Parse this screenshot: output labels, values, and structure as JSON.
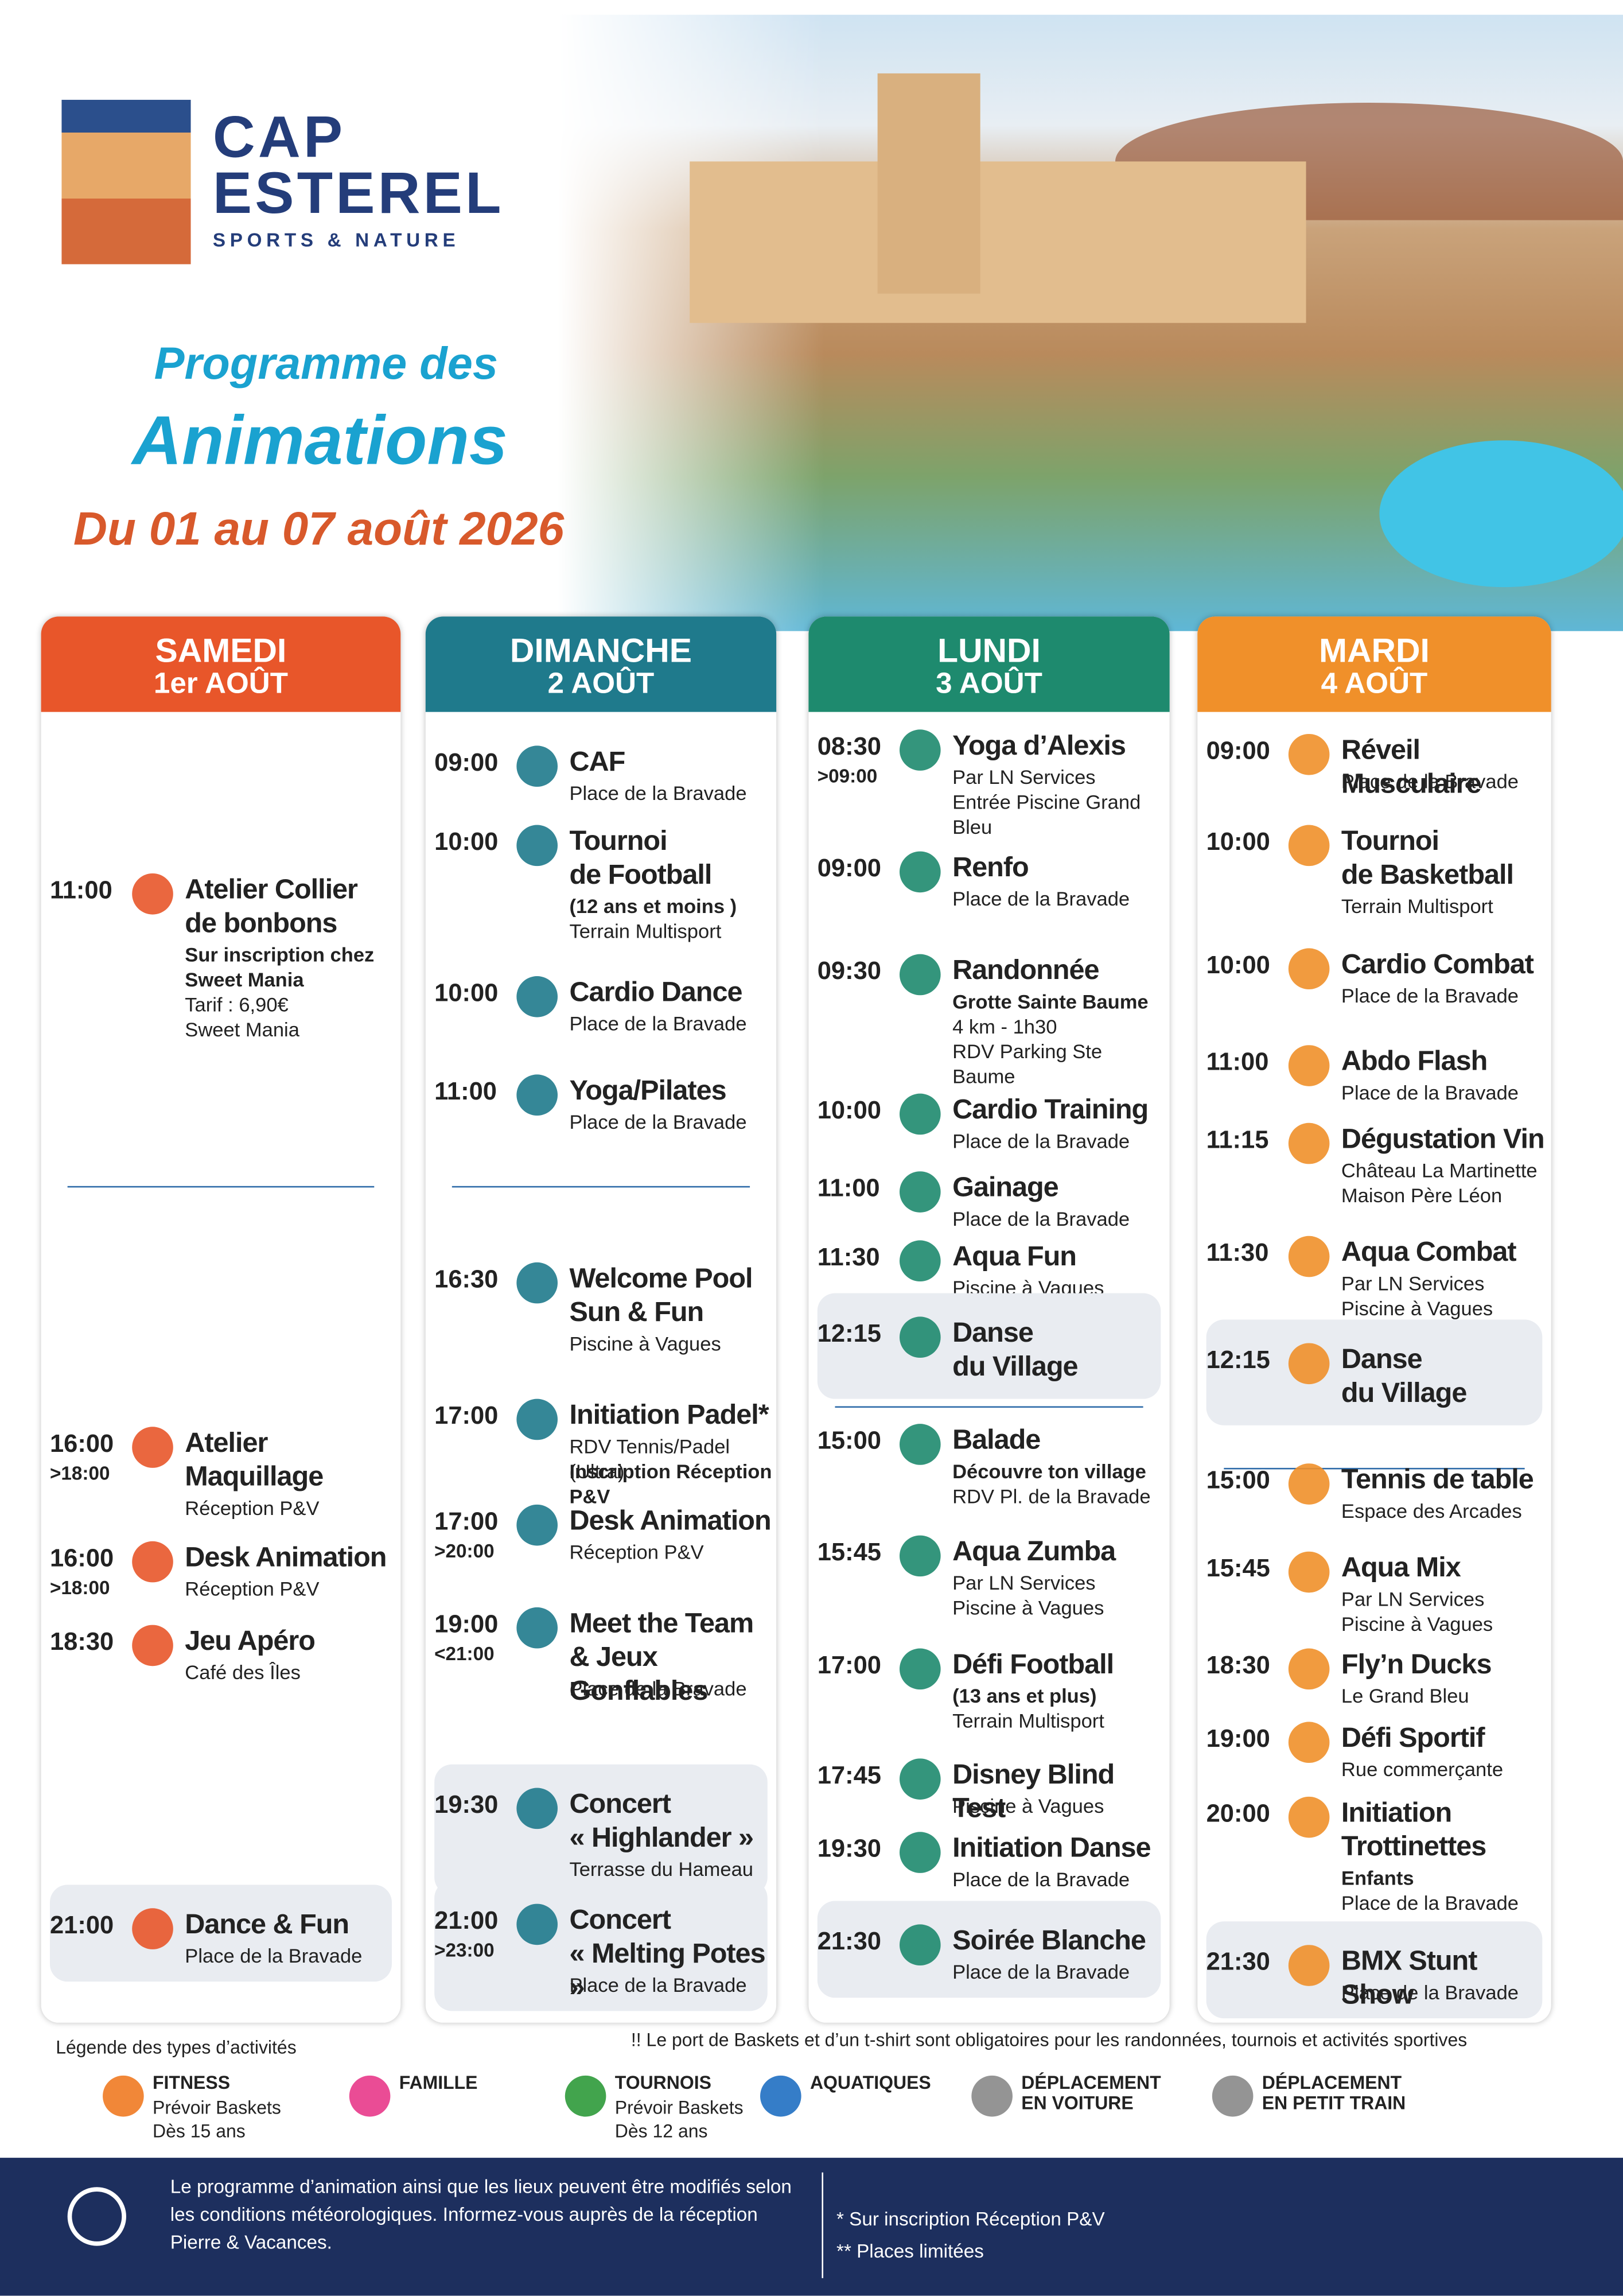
{
  "header": {
    "brand": "CAP",
    "brand2": "ESTEREL",
    "tagline": "SPORTS & NATURE",
    "title1": "Programme des",
    "title2": "Animations",
    "period": "Du 01 au 07 août 2026"
  },
  "days": [
    {
      "name": "SAMEDI",
      "date": "1er AOÛT",
      "color": "#e8562a",
      "events": [
        {
          "time": "11:00",
          "title": "Atelier Collier\nde bonbons",
          "lines": [
            {
              "text": "Sur inscription chez\nSweet Mania",
              "bold": true
            },
            {
              "text": "Tarif : 6,90€"
            },
            {
              "text": "Sweet Mania"
            }
          ]
        },
        {
          "time": "16:00",
          "end": ">18:00",
          "title": "Atelier\nMaquillage",
          "lines": [
            {
              "text": "Réception P&V"
            }
          ]
        },
        {
          "time": "16:00",
          "end": ">18:00",
          "title": "Desk Animation",
          "lines": [
            {
              "text": "Réception P&V"
            }
          ]
        },
        {
          "time": "18:30",
          "title": "Jeu Apéro",
          "lines": [
            {
              "text": "Café des Îles"
            }
          ]
        },
        {
          "time": "21:00",
          "title": "Dance & Fun",
          "lines": [
            {
              "text": "Place de la Bravade"
            }
          ],
          "highlight": true
        }
      ]
    },
    {
      "name": "DIMANCHE",
      "date": "2 AOÛT",
      "color": "#1f7a8c",
      "events": [
        {
          "time": "09:00",
          "title": "CAF",
          "lines": [
            {
              "text": "Place de la Bravade"
            }
          ]
        },
        {
          "time": "10:00",
          "title": "Tournoi\nde Football",
          "lines": [
            {
              "text": "(12 ans et moins )",
              "bold": true
            },
            {
              "text": "Terrain Multisport"
            }
          ]
        },
        {
          "time": "10:00",
          "title": "Cardio Dance",
          "lines": [
            {
              "text": "Place de la Bravade"
            }
          ]
        },
        {
          "time": "11:00",
          "title": "Yoga/Pilates",
          "lines": [
            {
              "text": "Place de la Bravade"
            }
          ]
        },
        {
          "time": "16:30",
          "title": "Welcome Pool\nSun & Fun",
          "lines": [
            {
              "text": "Piscine à Vagues"
            }
          ]
        },
        {
          "time": "17:00",
          "title": "Initiation Padel*",
          "lines": [
            {
              "text": "RDV Tennis/Padel (Ultra)"
            },
            {
              "text": "Inscription Réception P&V",
              "bold": true
            }
          ]
        },
        {
          "time": "17:00",
          "end": ">20:00",
          "title": "Desk Animation",
          "lines": [
            {
              "text": "Réception P&V"
            }
          ]
        },
        {
          "time": "19:00",
          "end": "<21:00",
          "title": "Meet the Team\n& Jeux Gonflables",
          "lines": [
            {
              "text": "Place de la Bravade"
            }
          ]
        },
        {
          "time": "19:30",
          "title": "Concert\n« Highlander »",
          "lines": [
            {
              "text": "Terrasse du Hameau"
            }
          ],
          "highlight": true
        },
        {
          "time": "21:00",
          "end": ">23:00",
          "title": "Concert\n« Melting Potes »",
          "lines": [
            {
              "text": "Place de la Bravade"
            }
          ],
          "highlight": true
        }
      ]
    },
    {
      "name": "LUNDI",
      "date": "3 AOÛT",
      "color": "#1e8a6e",
      "events": [
        {
          "time": "08:30",
          "end": ">09:00",
          "title": "Yoga d’Alexis",
          "lines": [
            {
              "text": "Par LN Services"
            },
            {
              "text": "Entrée Piscine Grand Bleu"
            }
          ]
        },
        {
          "time": "09:00",
          "title": "Renfo",
          "lines": [
            {
              "text": "Place de la Bravade"
            }
          ]
        },
        {
          "time": "09:30",
          "title": "Randonnée",
          "lines": [
            {
              "text": "Grotte Sainte Baume",
              "bold": true
            },
            {
              "text": "4 km - 1h30"
            },
            {
              "text": "RDV Parking Ste Baume"
            }
          ]
        },
        {
          "time": "10:00",
          "title": "Cardio Training",
          "lines": [
            {
              "text": "Place de la Bravade"
            }
          ]
        },
        {
          "time": "11:00",
          "title": "Gainage",
          "lines": [
            {
              "text": "Place de la Bravade"
            }
          ]
        },
        {
          "time": "11:30",
          "title": "Aqua Fun",
          "lines": [
            {
              "text": "Piscine à Vagues"
            }
          ]
        },
        {
          "time": "12:15",
          "title": "Danse\ndu Village",
          "lines": [],
          "highlight": true
        },
        {
          "time": "15:00",
          "title": "Balade",
          "lines": [
            {
              "text": "Découvre ton village",
              "bold": true
            },
            {
              "text": "RDV Pl. de la Bravade"
            }
          ]
        },
        {
          "time": "15:45",
          "title": "Aqua Zumba",
          "lines": [
            {
              "text": "Par LN Services"
            },
            {
              "text": "Piscine à Vagues"
            }
          ]
        },
        {
          "time": "17:00",
          "title": "Défi Football",
          "lines": [
            {
              "text": "(13 ans et plus)",
              "bold": true
            },
            {
              "text": "Terrain Multisport"
            }
          ]
        },
        {
          "time": "17:45",
          "title": "Disney Blind Test",
          "lines": [
            {
              "text": "Piscine à Vagues"
            }
          ]
        },
        {
          "time": "19:30",
          "title": "Initiation Danse",
          "lines": [
            {
              "text": "Place de la Bravade"
            }
          ]
        },
        {
          "time": "21:30",
          "title": "Soirée Blanche",
          "lines": [
            {
              "text": "Place de la Bravade"
            }
          ],
          "highlight": true
        }
      ]
    },
    {
      "name": "MARDI",
      "date": "4 AOÛT",
      "color": "#f0902a",
      "events": [
        {
          "time": "09:00",
          "title": "Réveil Musculaire",
          "lines": [
            {
              "text": "Place de la Bravade"
            }
          ]
        },
        {
          "time": "10:00",
          "title": "Tournoi\nde Basketball",
          "lines": [
            {
              "text": "Terrain Multisport"
            }
          ]
        },
        {
          "time": "10:00",
          "title": "Cardio Combat",
          "lines": [
            {
              "text": "Place de la Bravade"
            }
          ]
        },
        {
          "time": "11:00",
          "title": "Abdo Flash",
          "lines": [
            {
              "text": "Place de la Bravade"
            }
          ]
        },
        {
          "time": "11:15",
          "title": "Dégustation Vin",
          "lines": [
            {
              "text": "Château La Martinette"
            },
            {
              "text": "Maison Père Léon"
            }
          ]
        },
        {
          "time": "11:30",
          "title": "Aqua Combat",
          "lines": [
            {
              "text": "Par LN Services"
            },
            {
              "text": "Piscine à Vagues"
            }
          ]
        },
        {
          "time": "12:15",
          "title": "Danse\ndu Village",
          "lines": [],
          "highlight": true
        },
        {
          "time": "15:00",
          "title": "Tennis de table",
          "lines": [
            {
              "text": "Espace des Arcades"
            }
          ]
        },
        {
          "time": "15:45",
          "title": "Aqua Mix",
          "lines": [
            {
              "text": "Par LN Services"
            },
            {
              "text": "Piscine à Vagues"
            }
          ]
        },
        {
          "time": "18:30",
          "title": "Fly’n Ducks",
          "lines": [
            {
              "text": "Le Grand Bleu"
            }
          ]
        },
        {
          "time": "19:00",
          "title": "Défi Sportif",
          "lines": [
            {
              "text": "Rue commerçante"
            }
          ]
        },
        {
          "time": "20:00",
          "title": "Initiation\nTrottinettes",
          "lines": [
            {
              "text": "Enfants",
              "bold": true
            },
            {
              "text": "Place de la Bravade"
            }
          ]
        },
        {
          "time": "21:30",
          "title": "BMX Stunt Show",
          "lines": [
            {
              "text": "Place de la Bravade"
            }
          ],
          "highlight": true
        }
      ]
    }
  ],
  "legend": {
    "title": "Légende des types d’activités",
    "note": "!! Le port de Baskets et d’un t-shirt sont obligatoires pour les randonnées, tournois et activités sportives",
    "items": [
      {
        "label": "FITNESS",
        "lines": [
          "Prévoir Baskets",
          "Dès 15 ans"
        ],
        "color": "#f07a22"
      },
      {
        "label": "FAMILLE",
        "lines": [],
        "color": "#e8388a"
      },
      {
        "label": "TOURNOIS",
        "lines": [
          "Prévoir Baskets",
          "Dès 12 ans"
        ],
        "color": "#2d9a3a"
      },
      {
        "label": "AQUATIQUES",
        "lines": [],
        "color": "#1f6fc2"
      },
      {
        "label": "DÉPLACEMENT\nEN VOITURE",
        "lines": [],
        "color": "#888888"
      },
      {
        "label": "DÉPLACEMENT\nEN PETIT TRAIN",
        "lines": [],
        "color": "#888888"
      }
    ]
  },
  "footer": {
    "info": "Le programme d’animation ainsi que les lieux peuvent être modifiés selon les conditions météorologiques. Informez-vous auprès de la réception Pierre & Vacances.",
    "notes": [
      "* Sur inscription Réception P&V",
      "** Places limitées"
    ]
  }
}
